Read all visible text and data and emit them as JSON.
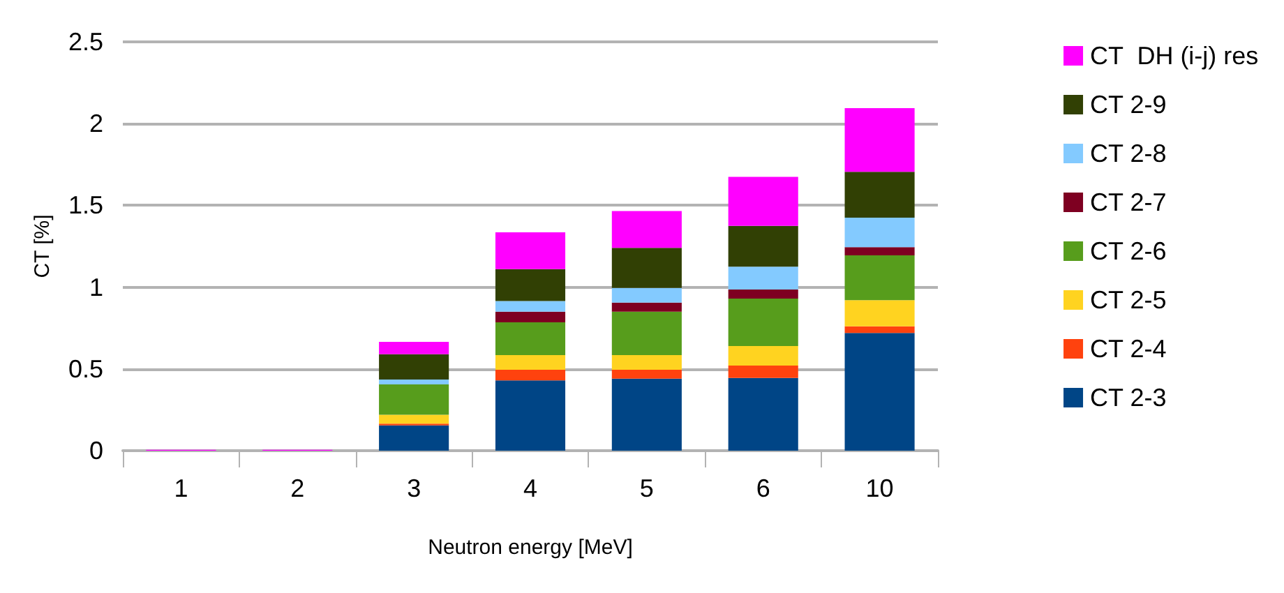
{
  "chart_data": {
    "type": "bar",
    "stacked": true,
    "xlabel": "Neutron energy [MeV]",
    "ylabel": "CT [%]",
    "categories": [
      "1",
      "2",
      "3",
      "4",
      "5",
      "6",
      "10"
    ],
    "ylim": [
      0,
      2.5
    ],
    "yticks": [
      0,
      0.5,
      1,
      1.5,
      2,
      2.5
    ],
    "grid": "y",
    "legend": "right",
    "series": [
      {
        "name": "CT 2-3",
        "color": "#004586",
        "values": [
          0,
          0,
          0.155,
          0.43,
          0.44,
          0.445,
          0.72
        ]
      },
      {
        "name": "CT 2-4",
        "color": "#ff420e",
        "values": [
          0,
          0,
          0.01,
          0.065,
          0.055,
          0.075,
          0.04
        ]
      },
      {
        "name": "CT 2-5",
        "color": "#ffd320",
        "values": [
          0,
          0,
          0.055,
          0.09,
          0.09,
          0.12,
          0.16
        ]
      },
      {
        "name": "CT 2-6",
        "color": "#579d1c",
        "values": [
          0,
          0,
          0.185,
          0.2,
          0.265,
          0.29,
          0.275
        ]
      },
      {
        "name": "CT 2-7",
        "color": "#7e0021",
        "values": [
          0,
          0,
          0,
          0.065,
          0.055,
          0.055,
          0.05
        ]
      },
      {
        "name": "CT 2-8",
        "color": "#83caff",
        "values": [
          0,
          0,
          0.03,
          0.065,
          0.09,
          0.14,
          0.18
        ]
      },
      {
        "name": "CT 2-9",
        "color": "#314004",
        "values": [
          0,
          0,
          0.155,
          0.195,
          0.245,
          0.25,
          0.28
        ]
      },
      {
        "name": "CT  DH (i-j) res",
        "color": "#ff00ff",
        "values": [
          0.005,
          0.005,
          0.075,
          0.225,
          0.225,
          0.3,
          0.39
        ]
      }
    ]
  }
}
